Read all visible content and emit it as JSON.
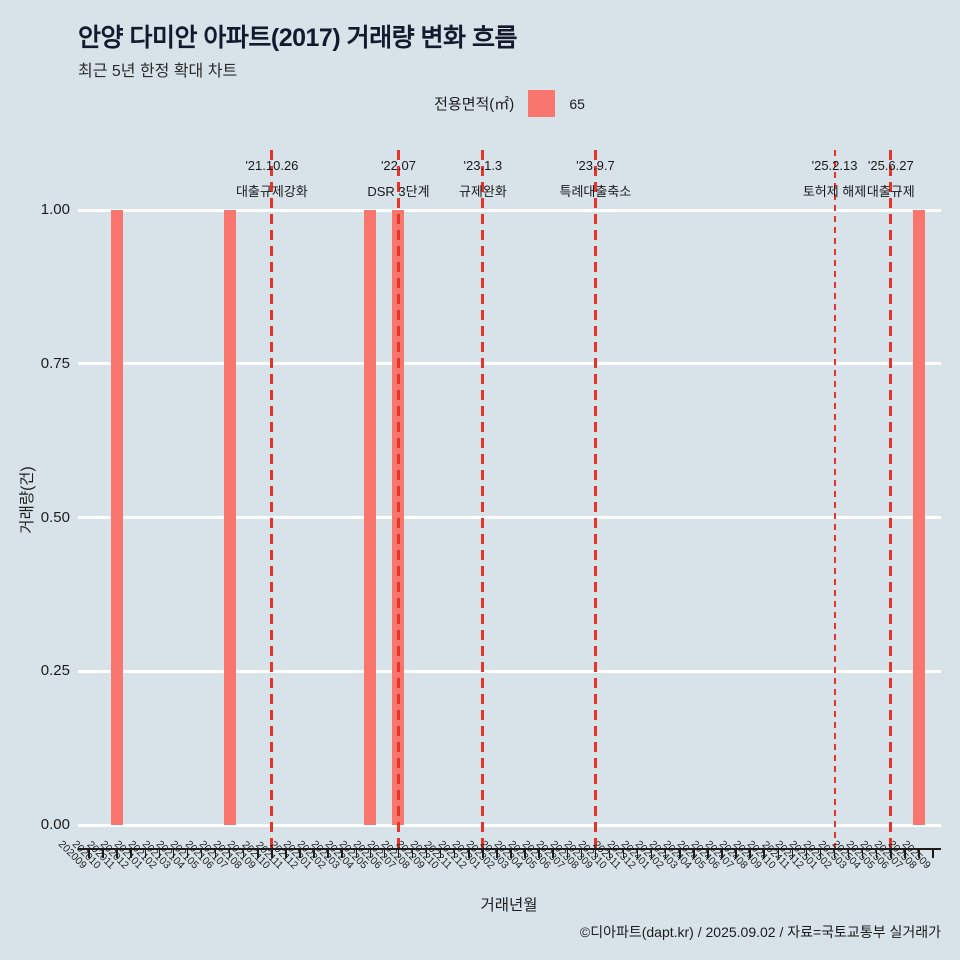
{
  "header": {
    "title": "안양 다미안 아파트(2017) 거래량 변화 흐름",
    "subtitle": "최근 5년 한정 확대 차트"
  },
  "legend": {
    "title": "전용면적(㎡)",
    "items": [
      {
        "label": "65",
        "color": "#f8766d"
      }
    ]
  },
  "footer": {
    "credit": "©디아파트(dapt.kr) / 2025.09.02 / 자료=국토교통부 실거래가"
  },
  "chart_data": {
    "type": "bar",
    "title": "안양 다미안 아파트(2017) 거래량 변화 흐름",
    "subtitle": "최근 5년 한정 확대 차트",
    "xlabel": "거래년월",
    "ylabel": "거래량(건)",
    "ylim": [
      0,
      1
    ],
    "yticks": [
      {
        "value": 0.0,
        "label": "0.00"
      },
      {
        "value": 0.25,
        "label": "0.25"
      },
      {
        "value": 0.5,
        "label": "0.50"
      },
      {
        "value": 0.75,
        "label": "0.75"
      },
      {
        "value": 1.0,
        "label": "1.00"
      }
    ],
    "grid": true,
    "gridline_color": "#ffffff",
    "background": "#d8e3e9",
    "categories": [
      "202009",
      "202010",
      "202011",
      "202012",
      "202101",
      "202102",
      "202103",
      "202104",
      "202105",
      "202106",
      "202107",
      "202108",
      "202109",
      "202110",
      "202111",
      "202112",
      "202201",
      "202202",
      "202203",
      "202204",
      "202205",
      "202206",
      "202207",
      "202208",
      "202209",
      "202210",
      "202211",
      "202212",
      "202301",
      "202302",
      "202303",
      "202304",
      "202305",
      "202306",
      "202307",
      "202308",
      "202309",
      "202310",
      "202311",
      "202312",
      "202401",
      "202402",
      "202403",
      "202404",
      "202405",
      "202406",
      "202407",
      "202408",
      "202409",
      "202410",
      "202411",
      "202412",
      "202501",
      "202502",
      "202503",
      "202504",
      "202505",
      "202506",
      "202507",
      "202508",
      "202509"
    ],
    "series": [
      {
        "name": "65",
        "color": "#f8766d",
        "values": [
          0,
          0,
          1,
          0,
          0,
          0,
          0,
          0,
          0,
          0,
          1,
          0,
          0,
          0,
          0,
          0,
          0,
          0,
          0,
          0,
          1,
          0,
          1,
          0,
          0,
          0,
          0,
          0,
          0,
          0,
          0,
          0,
          0,
          0,
          0,
          0,
          0,
          0,
          0,
          0,
          0,
          0,
          0,
          0,
          0,
          0,
          0,
          0,
          0,
          0,
          0,
          0,
          0,
          0,
          0,
          0,
          0,
          0,
          0,
          1,
          0
        ]
      }
    ],
    "event_lines": [
      {
        "x": "202110",
        "date": "'21.10.26",
        "label": "대출규제강화",
        "color": "#e6342a",
        "thin": false
      },
      {
        "x": "202207",
        "date": "'22.07",
        "label": "DSR 3단계",
        "color": "#e6342a",
        "thin": false
      },
      {
        "x": "202301",
        "date": "'23.1.3",
        "label": "규제완화",
        "color": "#e6342a",
        "thin": false
      },
      {
        "x": "202309",
        "date": "'23.9.7",
        "label": "특례대출축소",
        "color": "#e6342a",
        "thin": false
      },
      {
        "x": "202502",
        "date": "'25.2.13",
        "label": "토허제 해제",
        "color": "#e6342a",
        "thin": true
      },
      {
        "x": "202506",
        "date": "'25.6.27",
        "label": "대출규제",
        "color": "#e6342a",
        "thin": false
      }
    ]
  }
}
